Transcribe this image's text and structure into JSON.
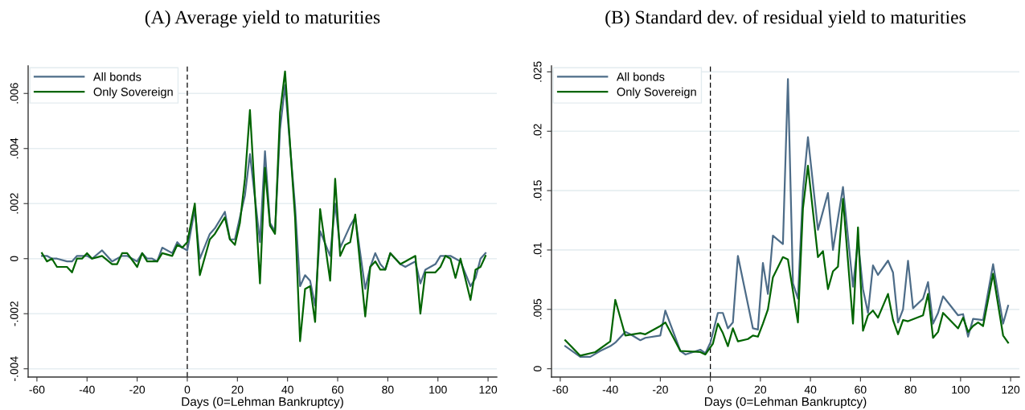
{
  "chart_data": [
    {
      "type": "line",
      "title": "(A) Average yield to maturities",
      "xlabel": "Days (0=Lehman Bankruptcy)",
      "x": [
        -58,
        -56,
        -54,
        -52,
        -48,
        -46,
        -44,
        -42,
        -40,
        -38,
        -34,
        -30,
        -28,
        -26,
        -24,
        -20,
        -18,
        -16,
        -14,
        -12,
        -10,
        -6,
        -4,
        -2,
        0,
        3,
        5,
        9,
        11,
        15,
        17,
        19,
        21,
        23,
        25,
        29,
        31,
        33,
        35,
        37,
        39,
        43,
        45,
        47,
        49,
        51,
        53,
        57,
        59,
        61,
        63,
        65,
        67,
        71,
        73,
        75,
        77,
        79,
        81,
        85,
        87,
        89,
        91,
        93,
        95,
        99,
        101,
        103,
        105,
        107,
        109,
        113,
        115,
        117,
        119
      ],
      "series": [
        {
          "name": "All bonds",
          "color": "#4d6c88",
          "values": [
            0.0001,
            0.0001,
            0,
            0,
            -0.0001,
            -0.0001,
            0.0001,
            0.0001,
            0.0001,
            0,
            0.0003,
            -0.0001,
            0,
            0.0001,
            0.0001,
            -0.0001,
            0.0002,
            0,
            0,
            -0.0001,
            0.0004,
            0.0002,
            0.0006,
            0.0004,
            0.0003,
            0.0018,
            0,
            0.0009,
            0.0011,
            0.0017,
            0.0007,
            0.0007,
            0.0015,
            0.0023,
            0.0038,
            0.0006,
            0.0039,
            0.0013,
            0.001,
            0.0047,
            0.0063,
            0.0019,
            -0.001,
            -0.0006,
            -0.0008,
            -0.0017,
            0.001,
            0.0001,
            0.002,
            0.0004,
            0.0008,
            0.0012,
            0.0015,
            -0.0011,
            -0.0003,
            0.0002,
            -0.0002,
            -0.0004,
            0.0002,
            -0.0002,
            -0.0003,
            -0.0002,
            -0.0001,
            -0.0009,
            -0.0004,
            -0.0002,
            0.0001,
            0.0001,
            0.0001,
            0,
            -0.0001,
            -0.001,
            -0.0007,
            0,
            0.0002
          ]
        },
        {
          "name": "Only Sovereign",
          "color": "#006400",
          "values": [
            0.0002,
            -0.0001,
            0,
            -0.0003,
            -0.0003,
            -0.0005,
            0,
            0,
            0.0002,
            0,
            0.0001,
            -0.0002,
            -0.0002,
            0.0002,
            0.0002,
            -0.0003,
            0.0002,
            -0.0001,
            -0.0001,
            -0.0001,
            0.0002,
            0.0001,
            0.0005,
            0.0004,
            0.0006,
            0.002,
            -0.0006,
            0.0007,
            0.0009,
            0.0015,
            0.0007,
            0.0005,
            0.0013,
            0.0029,
            0.0054,
            -0.0009,
            0.0033,
            0.0012,
            0.0009,
            0.0053,
            0.0068,
            0.0015,
            -0.003,
            -0.0011,
            -0.001,
            -0.0023,
            0.0018,
            -0.0008,
            0.0029,
            0.0001,
            0.0005,
            0.0006,
            0.0016,
            -0.0021,
            -0.0003,
            -0.0001,
            -0.0004,
            -0.0004,
            0.0002,
            -0.0002,
            -0.0001,
            0,
            0.0001,
            -0.002,
            -0.0005,
            -0.0005,
            -0.0003,
            0.0001,
            0,
            -0.0007,
            0,
            -0.0015,
            -0.0004,
            -0.0003,
            0.0001
          ]
        }
      ],
      "xlim": [
        -63.5,
        123.5
      ],
      "ylim": [
        -0.0043,
        0.007
      ],
      "xticks": [
        -60,
        -40,
        -20,
        0,
        20,
        40,
        60,
        80,
        100,
        120
      ],
      "yticks": [
        {
          "value": -0.004,
          "label": "-.004"
        },
        {
          "value": -0.002,
          "label": "-.002"
        },
        0,
        {
          "value": 0.002,
          "label": ".002"
        },
        {
          "value": 0.004,
          "label": ".004"
        },
        {
          "value": 0.006,
          "label": ".006"
        }
      ],
      "grid": "y",
      "legend": "top left",
      "line_style": "solid",
      "ref_lines": [
        {
          "axis": "x",
          "value": 0,
          "color": "#000000",
          "line_style": "dashed"
        }
      ]
    },
    {
      "type": "line",
      "title": "(B) Standard dev. of residual yield to maturities",
      "xlabel": "Days (0=Lehman Bankruptcy)",
      "series": [
        {
          "name": "All bonds",
          "color": "#4d6c88",
          "x": [
            -58,
            -52,
            -48,
            -44,
            -40,
            -38,
            -34,
            -32,
            -28,
            -26,
            -20,
            -18,
            -12,
            -10,
            -4,
            -2,
            0,
            3,
            5,
            7,
            9,
            11,
            17,
            19,
            21,
            23,
            25,
            29,
            31,
            33,
            35,
            37,
            39,
            43,
            47,
            49,
            53,
            57,
            59,
            61,
            63,
            65,
            67,
            71,
            73,
            75,
            77,
            79,
            81,
            85,
            87,
            89,
            91,
            93,
            99,
            101,
            103,
            105,
            109,
            113,
            117,
            119
          ],
          "values": [
            0.0019,
            0.001,
            0.001,
            0.0015,
            0.0019,
            0.0022,
            0.0031,
            0.0029,
            0.0024,
            0.0026,
            0.0028,
            0.0049,
            0.0015,
            0.0012,
            0.0016,
            0.0013,
            0.0022,
            0.0047,
            0.0047,
            0.0034,
            0.0039,
            0.0095,
            0.0034,
            0.0033,
            0.0089,
            0.0063,
            0.0112,
            0.0105,
            0.0244,
            0.0072,
            0.0059,
            0.015,
            0.0195,
            0.0117,
            0.0148,
            0.01,
            0.0153,
            0.0069,
            0.0108,
            0.0067,
            0.0047,
            0.0087,
            0.0079,
            0.0091,
            0.0081,
            0.0039,
            0.005,
            0.0091,
            0.0051,
            0.0059,
            0.0073,
            0.0038,
            0.0047,
            0.0061,
            0.0045,
            0.0046,
            0.0027,
            0.0042,
            0.0041,
            0.0088,
            0.0038,
            0.0053
          ]
        },
        {
          "name": "Only Sovereign",
          "color": "#006400",
          "x": [
            -58,
            -52,
            -46,
            -40,
            -38,
            -34,
            -28,
            -26,
            -20,
            -18,
            -12,
            -4,
            -2,
            1,
            3,
            5,
            7,
            9,
            11,
            15,
            17,
            19,
            21,
            23,
            25,
            29,
            31,
            35,
            37,
            39,
            43,
            45,
            47,
            49,
            51,
            53,
            57,
            59,
            61,
            63,
            65,
            67,
            71,
            73,
            75,
            77,
            79,
            85,
            87,
            89,
            91,
            93,
            99,
            101,
            103,
            105,
            107,
            109,
            113,
            117,
            119
          ],
          "values": [
            0.0024,
            0.0011,
            0.0014,
            0.0023,
            0.0058,
            0.0028,
            0.003,
            0.0029,
            0.0036,
            0.0039,
            0.0015,
            0.0014,
            0.0012,
            0.0021,
            0.0038,
            0.003,
            0.0019,
            0.0034,
            0.0023,
            0.0025,
            0.0028,
            0.0027,
            0.0038,
            0.005,
            0.0077,
            0.0094,
            0.0092,
            0.0039,
            0.0135,
            0.0171,
            0.0094,
            0.0099,
            0.0067,
            0.0082,
            0.0086,
            0.0143,
            0.0038,
            0.0119,
            0.0032,
            0.0045,
            0.0049,
            0.0043,
            0.0063,
            0.0041,
            0.0029,
            0.0041,
            0.004,
            0.0045,
            0.0063,
            0.0026,
            0.0031,
            0.0047,
            0.0034,
            0.0043,
            0.0031,
            0.0036,
            0.0039,
            0.0036,
            0.008,
            0.0028,
            0.0022
          ]
        }
      ],
      "xlim": [
        -63.5,
        123.5
      ],
      "ylim": [
        -0.0007,
        0.0255
      ],
      "xticks": [
        -60,
        -40,
        -20,
        0,
        20,
        40,
        60,
        80,
        100,
        120
      ],
      "yticks": [
        0,
        {
          "value": 0.005,
          "label": ".005"
        },
        {
          "value": 0.01,
          "label": ".01"
        },
        {
          "value": 0.015,
          "label": ".015"
        },
        {
          "value": 0.02,
          "label": ".02"
        },
        {
          "value": 0.025,
          "label": ".025"
        }
      ],
      "grid": "y",
      "legend": "top left",
      "line_style": "solid",
      "ref_lines": [
        {
          "axis": "x",
          "value": 0,
          "color": "#000000",
          "line_style": "dashed"
        }
      ]
    }
  ]
}
